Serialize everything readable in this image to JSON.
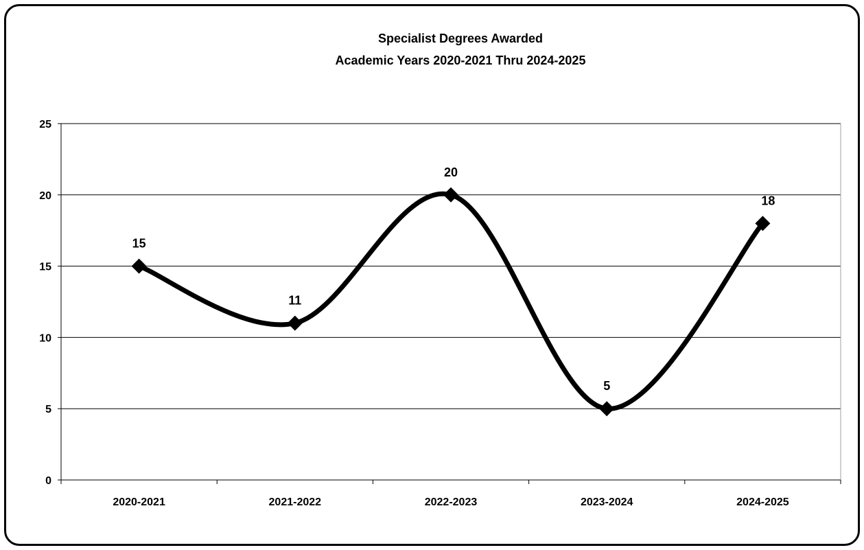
{
  "chart_data": {
    "type": "line",
    "title": "Specialist Degrees Awarded",
    "subtitle": "Academic Years 2020-2021 Thru 2024-2025",
    "categories": [
      "2020-2021",
      "2021-2022",
      "2022-2023",
      "2023-2024",
      "2024-2025"
    ],
    "series": [
      {
        "values": [
          15,
          11,
          20,
          5,
          18
        ],
        "color": "#000000",
        "marker": "diamond",
        "smooth": true
      }
    ],
    "ylim": [
      0,
      25
    ],
    "yticks": [
      0,
      5,
      10,
      15,
      20,
      25
    ],
    "grid": "horizontal",
    "data_labels": true,
    "legend": "none"
  }
}
